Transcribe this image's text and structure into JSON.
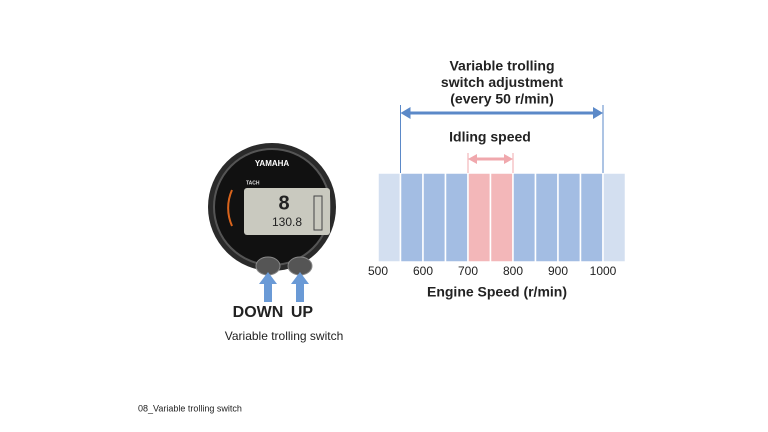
{
  "gauge": {
    "brand": "YAMAHA",
    "label": "TACH",
    "digit": "8",
    "reading": "130.8",
    "down": "DOWN",
    "up": "UP",
    "caption": "Variable trolling switch"
  },
  "scale": {
    "adjustment_label": [
      "Variable trolling",
      "switch adjustment",
      "(every 50 r/min)"
    ],
    "idling_label": "Idling speed",
    "axis_label": "Engine Speed (r/min)",
    "xlim": [
      500,
      1050
    ],
    "step": 50,
    "xticks": [
      500,
      600,
      700,
      800,
      900,
      1000
    ],
    "adjustment_range": [
      550,
      1000
    ],
    "idling_range": [
      700,
      800
    ],
    "colors": {
      "outside": "#d3dff0",
      "adjustment": "#a3bde3",
      "idling": "#f3b7b9",
      "arrow": "#5b89c8",
      "idling_arrow": "#f0a8ad"
    }
  },
  "footer": "08_Variable trolling switch"
}
